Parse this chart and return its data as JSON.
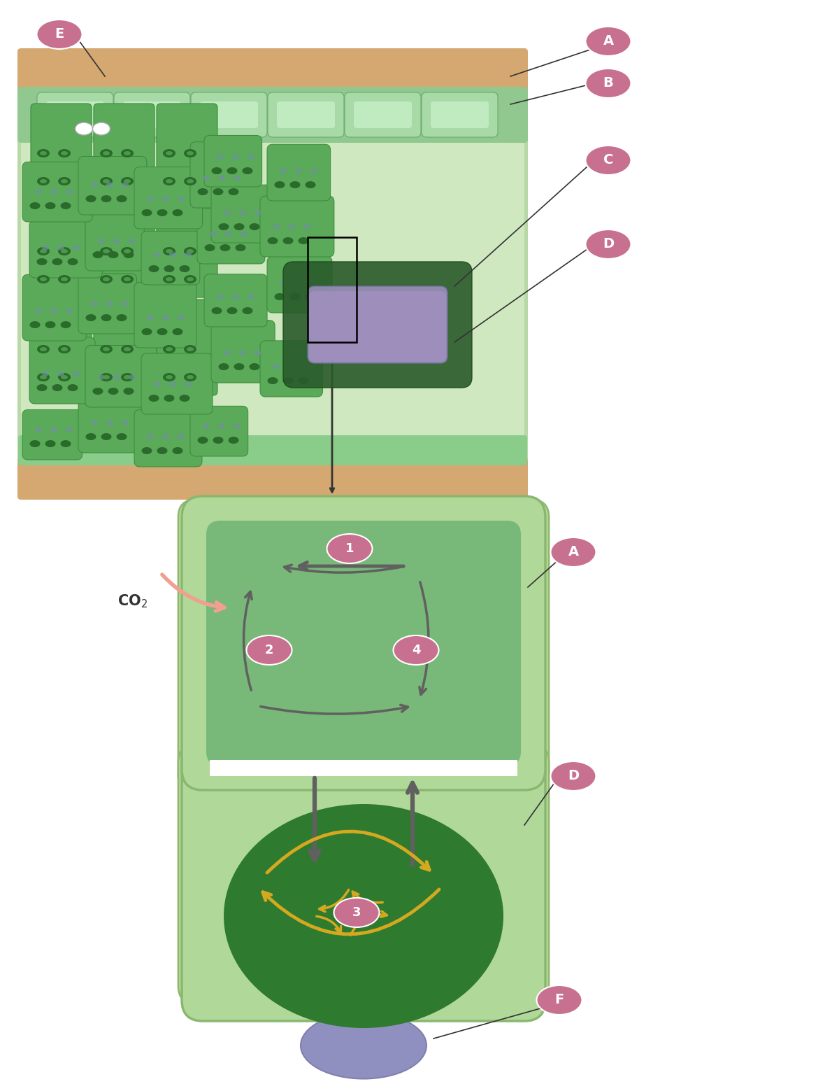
{
  "fig_width": 12.0,
  "fig_height": 15.59,
  "bg_color": "#ffffff",
  "label_bubble_color": "#c87090",
  "label_bubble_alpha": 0.85,
  "label_text_color": "#ffffff",
  "label_fontsize": 14,
  "label_fontweight": "bold",
  "co2_text_color": "#333333",
  "co2_arrow_color": "#f0a090",
  "leaf_top_color": "#7ab87a",
  "leaf_mid_color": "#5a9a5a",
  "leaf_cell_color": "#4a8a4a",
  "leaf_inner_color": "#3a7a3a",
  "epidermis_color": "#d4a870",
  "vein_purple_color": "#a090c0",
  "light_green_bg": "#a8d090",
  "medium_green_cell": "#6aaa6a",
  "dark_green_chloroplast": "#2a6a2a",
  "gray_arrow_color": "#606060",
  "gold_arrow_color": "#d4a820",
  "purple_blob_color": "#9090c0",
  "note_line_color": "#333333",
  "labels": [
    "A",
    "B",
    "C",
    "D",
    "E",
    "F"
  ],
  "numbers": [
    "1",
    "2",
    "3",
    "4"
  ]
}
